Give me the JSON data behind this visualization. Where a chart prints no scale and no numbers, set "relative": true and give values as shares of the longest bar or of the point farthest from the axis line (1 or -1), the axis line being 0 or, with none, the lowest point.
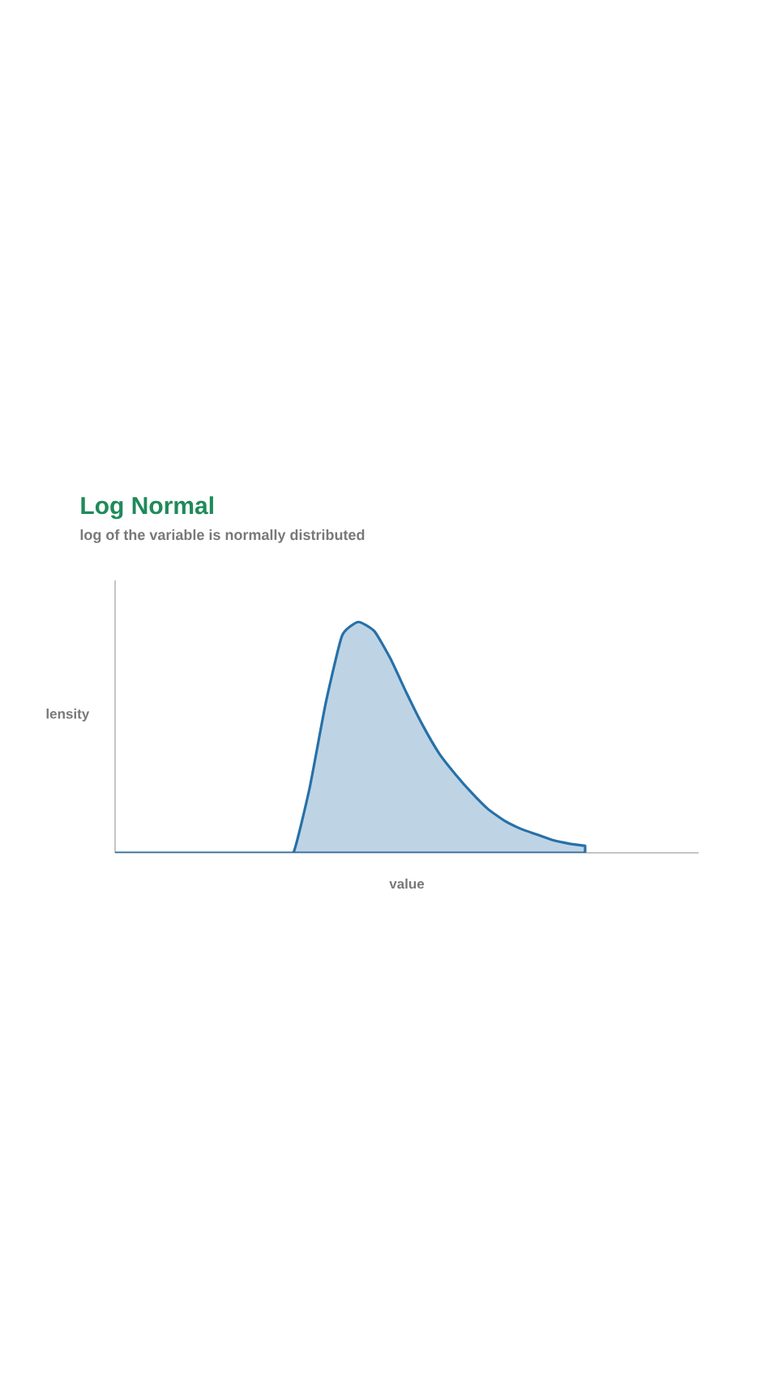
{
  "chart_data": {
    "type": "area",
    "title": "Log Normal",
    "subtitle": "log of the variable is normally distributed",
    "xlabel": "value",
    "ylabel": "lensity",
    "relative": true,
    "categories": [
      null,
      null,
      null,
      null,
      null,
      null,
      null,
      null,
      null,
      null,
      null,
      null,
      null,
      null,
      null,
      null,
      null,
      null,
      null,
      null,
      null,
      null,
      null,
      null,
      null,
      null,
      null,
      null,
      null,
      null,
      null,
      null,
      null,
      null,
      null,
      null,
      null
    ],
    "series": [
      {
        "color": "#2770a8",
        "values": [
          0,
          0,
          0,
          0,
          0,
          0,
          0,
          0,
          0,
          0,
          0,
          0,
          0.28,
          0.65,
          0.94,
          1,
          0.96,
          0.84,
          0.69,
          0.55,
          0.43,
          0.34,
          0.26,
          0.19,
          0.14,
          0.105,
          0.08,
          0.055,
          0.04,
          0.03,
          null,
          null,
          null,
          null,
          null,
          null,
          null
        ]
      }
    ]
  }
}
